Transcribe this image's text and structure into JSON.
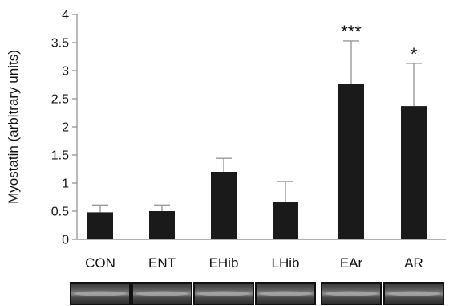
{
  "chart_data": {
    "type": "bar",
    "ylabel": "Myostatin (arbitrary units)",
    "ylim": [
      0,
      4
    ],
    "yticks": [
      "0",
      "0.5",
      "1",
      "1.5",
      "2",
      "2.5",
      "3",
      "3.5",
      "4"
    ],
    "categories": [
      "CON",
      "ENT",
      "EHib",
      "LHib",
      "EAr",
      "AR"
    ],
    "values": [
      0.48,
      0.5,
      1.2,
      0.67,
      2.77,
      2.37
    ],
    "errors": [
      0.13,
      0.11,
      0.24,
      0.36,
      0.76,
      0.76
    ],
    "significance": [
      "",
      "",
      "",
      "",
      "***",
      "*"
    ],
    "bar_color": "#1a1a1a",
    "grid": false,
    "blot_strip": true
  }
}
